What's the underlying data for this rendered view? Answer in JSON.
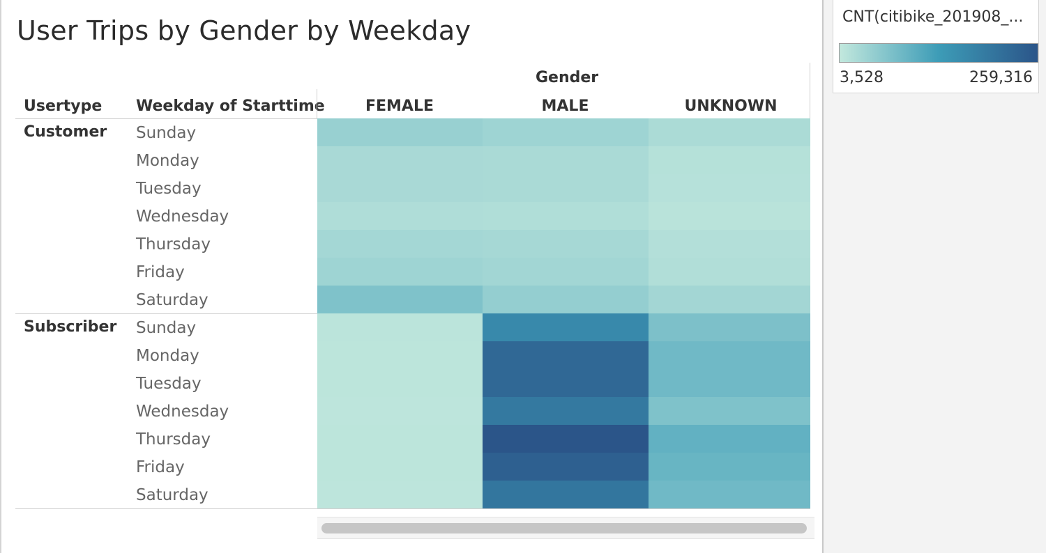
{
  "title": "User Trips by Gender by Weekday",
  "headers": {
    "gender": "Gender",
    "usertype": "Usertype",
    "weekday": "Weekday of Starttime",
    "columns": [
      "FEMALE",
      "MALE",
      "UNKNOWN"
    ]
  },
  "legend": {
    "title": "CNT(citibike_201908_...",
    "min_label": "3,528",
    "max_label": "259,316",
    "colors": [
      "#c2e8dd",
      "#3d9cb7",
      "#2b5589"
    ]
  },
  "chart_data": {
    "type": "heatmap",
    "title": "User Trips by Gender by Weekday",
    "measure": "CNT(citibike_201908_...",
    "x_field": "Gender",
    "x": [
      "FEMALE",
      "MALE",
      "UNKNOWN"
    ],
    "row_fields": [
      "Usertype",
      "Weekday of Starttime"
    ],
    "color_range": [
      3528,
      259316
    ],
    "groups": [
      {
        "name": "Customer",
        "rows": [
          {
            "label": "Sunday",
            "values": [
              44000,
              38000,
              26000
            ]
          },
          {
            "label": "Monday",
            "values": [
              28000,
              27000,
              16000
            ]
          },
          {
            "label": "Tuesday",
            "values": [
              28000,
              27000,
              15000
            ]
          },
          {
            "label": "Wednesday",
            "values": [
              22000,
              21000,
              12000
            ]
          },
          {
            "label": "Thursday",
            "values": [
              32000,
              30000,
              18000
            ]
          },
          {
            "label": "Friday",
            "values": [
              38000,
              34000,
              20000
            ]
          },
          {
            "label": "Saturday",
            "values": [
              68000,
              48000,
              33000
            ]
          }
        ]
      },
      {
        "name": "Subscriber",
        "rows": [
          {
            "label": "Sunday",
            "values": [
              10000,
              165000,
              70000
            ]
          },
          {
            "label": "Monday",
            "values": [
              9000,
              225000,
              82000
            ]
          },
          {
            "label": "Tuesday",
            "values": [
              9000,
              225000,
              82000
            ]
          },
          {
            "label": "Wednesday",
            "values": [
              8000,
              195000,
              68000
            ]
          },
          {
            "label": "Thursday",
            "values": [
              9000,
              259316,
              96000
            ]
          },
          {
            "label": "Friday",
            "values": [
              9000,
              240000,
              90000
            ]
          },
          {
            "label": "Saturday",
            "values": [
              8000,
              200000,
              82000
            ]
          }
        ]
      }
    ]
  }
}
